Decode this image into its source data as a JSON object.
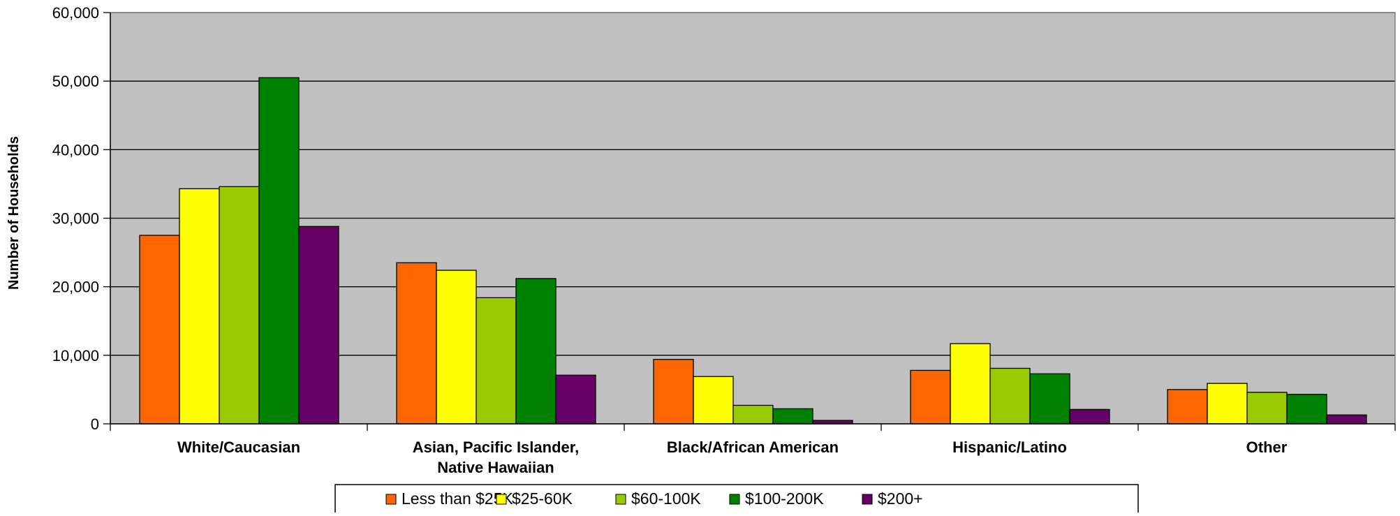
{
  "chart_data": {
    "type": "bar",
    "title": "",
    "xlabel": "",
    "ylabel": "Number of Households",
    "ylim": [
      0,
      60000
    ],
    "yticks": [
      0,
      10000,
      20000,
      30000,
      40000,
      50000,
      60000
    ],
    "ytick_labels": [
      "0",
      "10,000",
      "20,000",
      "30,000",
      "40,000",
      "50,000",
      "60,000"
    ],
    "grid": true,
    "plot_background": "#C0C0C0",
    "legend_position": "bottom-center",
    "categories": [
      [
        "White/Caucasian"
      ],
      [
        "Asian, Pacific Islander,",
        "Native Hawaiian"
      ],
      [
        "Black/African American"
      ],
      [
        "Hispanic/Latino"
      ],
      [
        "Other"
      ]
    ],
    "series": [
      {
        "name": "Less than $25K",
        "color": "#FF6600",
        "values": [
          27500,
          23500,
          9400,
          7800,
          5000
        ]
      },
      {
        "name": "$25-60K",
        "color": "#FFFF00",
        "values": [
          34300,
          22400,
          6900,
          11700,
          5900
        ]
      },
      {
        "name": "$60-100K",
        "color": "#99CC00",
        "values": [
          34600,
          18400,
          2700,
          8100,
          4600
        ]
      },
      {
        "name": "$100-200K",
        "color": "#008000",
        "values": [
          50500,
          21200,
          2200,
          7300,
          4300
        ]
      },
      {
        "name": "$200+",
        "color": "#660066",
        "values": [
          28800,
          7100,
          500,
          2100,
          1300
        ]
      }
    ]
  }
}
